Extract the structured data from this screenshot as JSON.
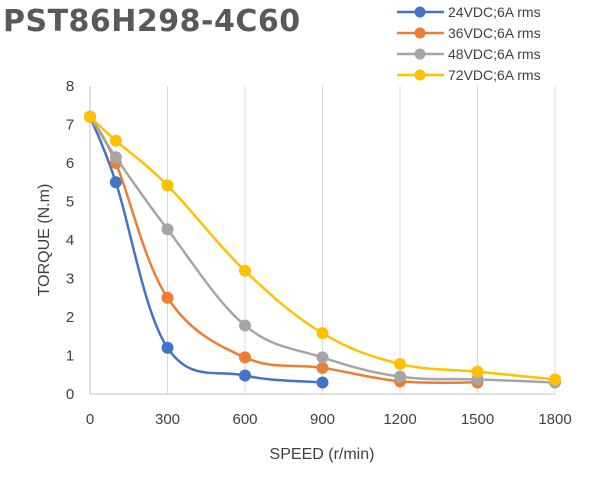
{
  "chart_data": {
    "type": "line",
    "title": "PST86H298-4C60",
    "xlabel": "SPEED (r/min)",
    "ylabel": "TORQUE (N.m)",
    "xlim": [
      0,
      1800
    ],
    "ylim": [
      0,
      8
    ],
    "x_ticks": [
      "0",
      "300",
      "600",
      "900",
      "1200",
      "1500",
      "1800"
    ],
    "y_ticks": [
      "0",
      "1",
      "2",
      "3",
      "4",
      "5",
      "6",
      "7",
      "8"
    ],
    "x_tick_values": [
      0,
      300,
      600,
      900,
      1200,
      1500,
      1800
    ],
    "y_tick_values": [
      0,
      1,
      2,
      3,
      4,
      5,
      6,
      7,
      8
    ],
    "grid": "vertical",
    "legend_position": "top-right",
    "series": [
      {
        "name": "24VDC;6A rms",
        "color": "#4472C4",
        "points": [
          [
            0,
            7.2
          ],
          [
            100,
            5.5
          ],
          [
            300,
            1.2
          ],
          [
            600,
            0.48
          ],
          [
            900,
            0.3
          ]
        ]
      },
      {
        "name": "36VDC;6A rms",
        "color": "#ED7D31",
        "points": [
          [
            0,
            7.2
          ],
          [
            100,
            6.0
          ],
          [
            300,
            2.5
          ],
          [
            600,
            0.95
          ],
          [
            900,
            0.68
          ],
          [
            1200,
            0.33
          ],
          [
            1500,
            0.3
          ]
        ]
      },
      {
        "name": "48VDC;6A rms",
        "color": "#A5A5A5",
        "points": [
          [
            0,
            7.2
          ],
          [
            100,
            6.15
          ],
          [
            300,
            4.28
          ],
          [
            600,
            1.78
          ],
          [
            900,
            0.95
          ],
          [
            1200,
            0.45
          ],
          [
            1500,
            0.38
          ],
          [
            1800,
            0.3
          ]
        ]
      },
      {
        "name": "72VDC;6A rms",
        "color": "#FFC000",
        "points": [
          [
            0,
            7.2
          ],
          [
            100,
            6.58
          ],
          [
            300,
            5.42
          ],
          [
            600,
            3.2
          ],
          [
            900,
            1.58
          ],
          [
            1200,
            0.78
          ],
          [
            1500,
            0.58
          ],
          [
            1800,
            0.38
          ]
        ]
      }
    ]
  }
}
